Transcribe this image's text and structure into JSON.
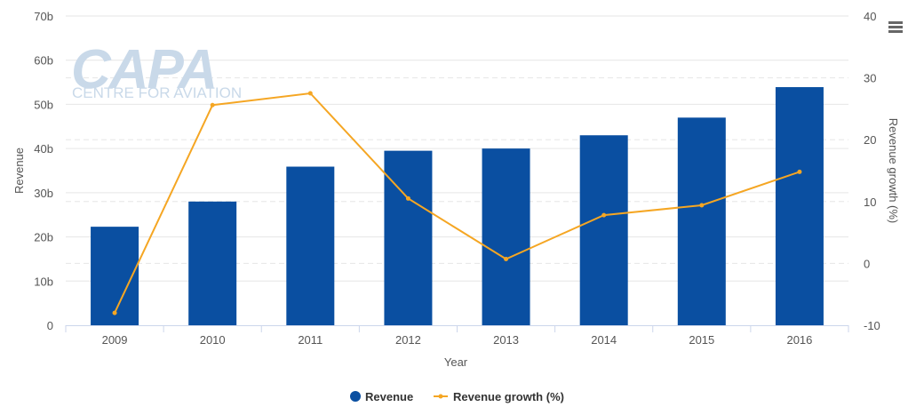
{
  "chart_data": {
    "type": "bar",
    "categories": [
      "2009",
      "2010",
      "2011",
      "2012",
      "2013",
      "2014",
      "2015",
      "2016"
    ],
    "series": [
      {
        "name": "Revenue",
        "type": "bar",
        "axis": "left",
        "color": "#0a4fa1",
        "values": [
          22.3,
          28.0,
          35.9,
          39.5,
          40.0,
          43.0,
          47.0,
          53.9
        ]
      },
      {
        "name": "Revenue growth (%)",
        "type": "line",
        "axis": "right",
        "color": "#f5a623",
        "values": [
          -8.0,
          25.6,
          27.5,
          10.5,
          0.7,
          7.8,
          9.4,
          14.8
        ]
      }
    ],
    "xlabel": "Year",
    "ylabel": "Revenue",
    "y2label": "Revenue growth (%)",
    "ylim": [
      0,
      70
    ],
    "y2lim": [
      -10,
      40
    ],
    "yticks": [
      "0",
      "10b",
      "20b",
      "30b",
      "40b",
      "50b",
      "60b",
      "70b"
    ],
    "y2ticks": [
      "-10",
      "0",
      "10",
      "20",
      "30",
      "40"
    ],
    "grid": true,
    "legend_position": "bottom-center"
  },
  "watermark": {
    "brand": "CAPA",
    "subtitle": "CENTRE FOR AVIATION"
  },
  "menu_icon": "hamburger-menu-icon"
}
